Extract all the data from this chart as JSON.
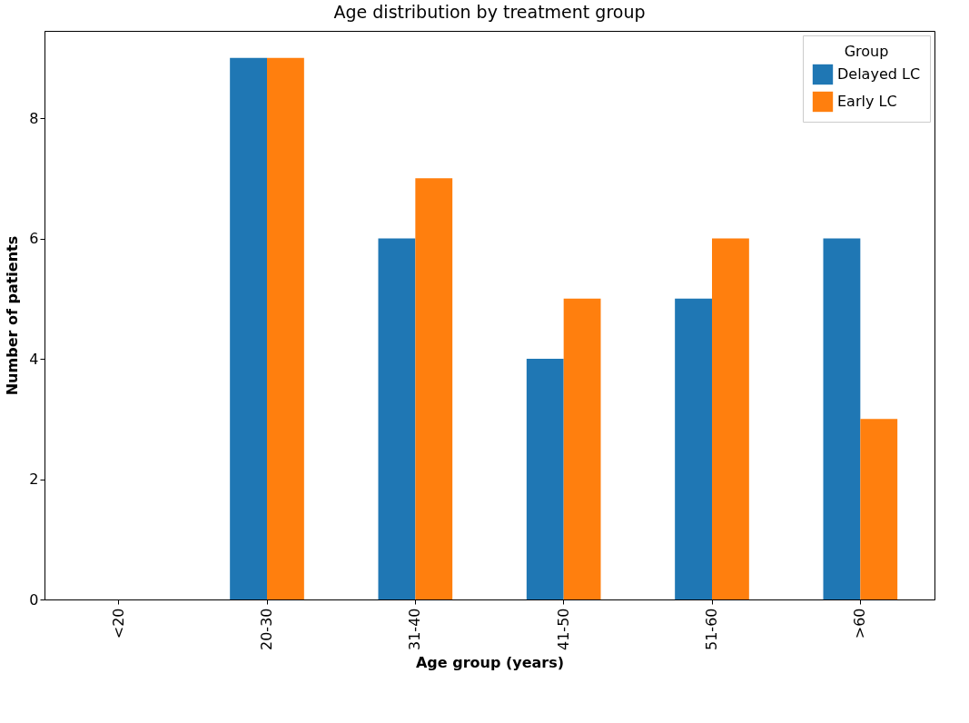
{
  "chart_data": {
    "type": "bar",
    "title": "Age distribution by treatment group",
    "xlabel": "Age group (years)",
    "ylabel": "Number of patients",
    "legend_title": "Group",
    "categories": [
      "<20",
      "20-30",
      "31-40",
      "41-50",
      "51-60",
      ">60"
    ],
    "series": [
      {
        "name": "Delayed LC",
        "color": "#1f77b4",
        "values": [
          0,
          9,
          6,
          4,
          5,
          6
        ]
      },
      {
        "name": "Early LC",
        "color": "#ff7f0e",
        "values": [
          0,
          9,
          7,
          5,
          6,
          3
        ]
      }
    ],
    "ylim": [
      0,
      9.45
    ],
    "yticks": [
      0,
      2,
      4,
      6,
      8
    ],
    "legend": "top right"
  }
}
